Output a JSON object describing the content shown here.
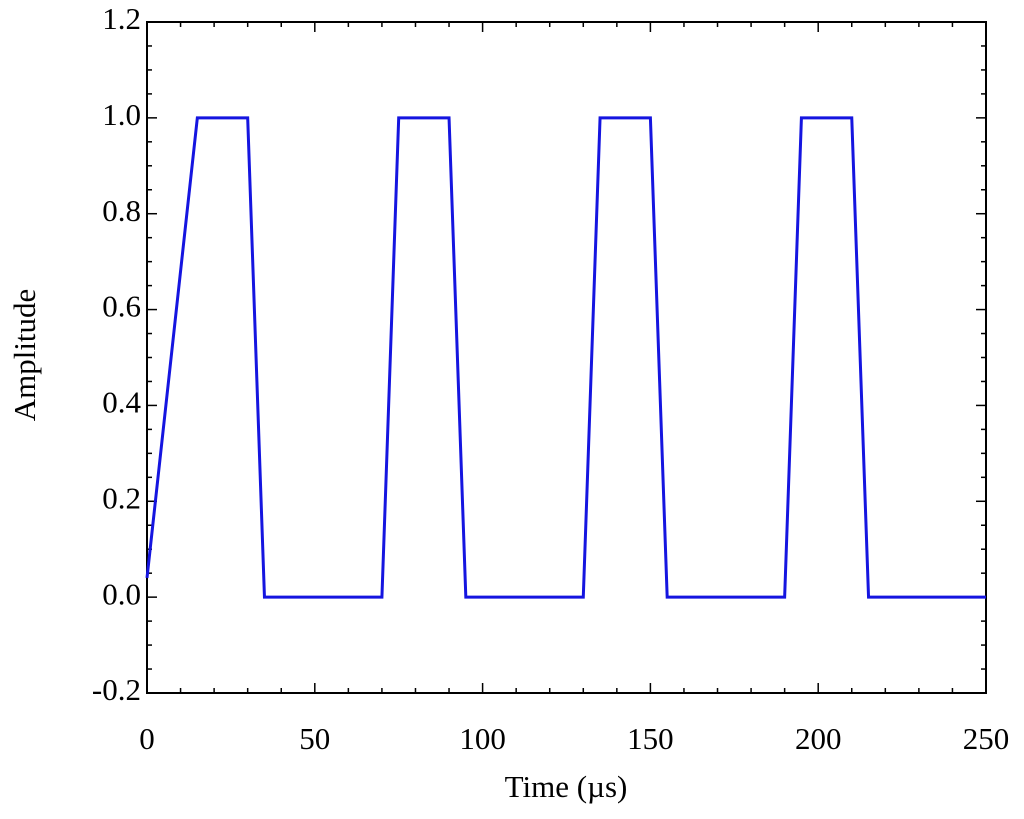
{
  "chart_data": {
    "type": "line",
    "xlabel": "Time (µs)",
    "ylabel": "Amplitude",
    "x": [
      0,
      15,
      30,
      35,
      70,
      75,
      90,
      95,
      130,
      135,
      150,
      155,
      190,
      195,
      210,
      215,
      250
    ],
    "series": [
      {
        "name": "Amplitude",
        "color": "#1515e0",
        "values": [
          0.04,
          1.0,
          1.0,
          0.0,
          0.0,
          1.0,
          1.0,
          0.0,
          0.0,
          1.0,
          1.0,
          0.0,
          0.0,
          1.0,
          1.0,
          0.0,
          0.0
        ]
      }
    ],
    "xlim": [
      0,
      250
    ],
    "xticks": [
      0,
      50,
      100,
      150,
      200,
      250
    ],
    "ylim": [
      -0.2,
      1.2
    ],
    "yticks": [
      {
        "value": -0.2,
        "label": "-0.2"
      },
      {
        "value": 0,
        "label": "0.0"
      },
      0.2,
      0.4,
      0.6,
      0.8,
      {
        "value": 1,
        "label": "1.0"
      },
      1.2
    ],
    "grid": false
  }
}
